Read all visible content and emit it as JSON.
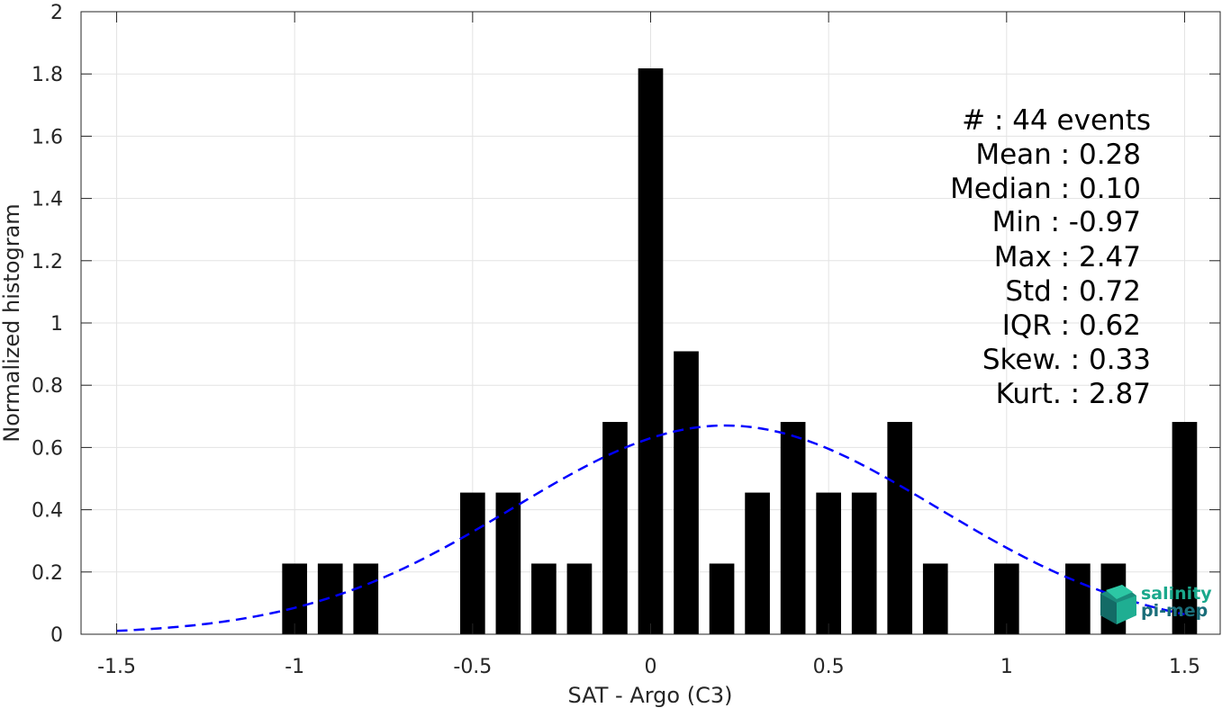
{
  "chart_data": {
    "type": "bar",
    "xlabel": "SAT - Argo (C3)",
    "ylabel": "Normalized histogram",
    "xlim": [
      -1.6,
      1.6
    ],
    "ylim": [
      0,
      2
    ],
    "xticks": [
      -1.5,
      -1,
      -0.5,
      0,
      0.5,
      1,
      1.5
    ],
    "xtick_labels": [
      "-1.5",
      "-1",
      "-0.5",
      "0",
      "0.5",
      "1",
      "1.5"
    ],
    "yticks": [
      0,
      0.2,
      0.4,
      0.6,
      0.8,
      1,
      1.2,
      1.4,
      1.6,
      1.8,
      2
    ],
    "ytick_labels": [
      "0",
      "0.2",
      "0.4",
      "0.6",
      "0.8",
      "1",
      "1.2",
      "1.4",
      "1.6",
      "1.8",
      "2"
    ],
    "grid": true,
    "bar_width": 0.07,
    "bar_color": "#000000",
    "bins": [
      {
        "x": -1.0,
        "value": 0.227
      },
      {
        "x": -0.9,
        "value": 0.227
      },
      {
        "x": -0.8,
        "value": 0.227
      },
      {
        "x": -0.5,
        "value": 0.455
      },
      {
        "x": -0.4,
        "value": 0.455
      },
      {
        "x": -0.3,
        "value": 0.227
      },
      {
        "x": -0.2,
        "value": 0.227
      },
      {
        "x": -0.1,
        "value": 0.682
      },
      {
        "x": 0.0,
        "value": 1.818
      },
      {
        "x": 0.1,
        "value": 0.909
      },
      {
        "x": 0.2,
        "value": 0.227
      },
      {
        "x": 0.3,
        "value": 0.455
      },
      {
        "x": 0.4,
        "value": 0.682
      },
      {
        "x": 0.5,
        "value": 0.455
      },
      {
        "x": 0.6,
        "value": 0.455
      },
      {
        "x": 0.7,
        "value": 0.682
      },
      {
        "x": 0.8,
        "value": 0.227
      },
      {
        "x": 1.0,
        "value": 0.227
      },
      {
        "x": 1.2,
        "value": 0.227
      },
      {
        "x": 1.3,
        "value": 0.227
      },
      {
        "x": 1.5,
        "value": 0.682
      }
    ],
    "fit_curve": {
      "style": "dashed",
      "color": "#0000ff",
      "mean": 0.21,
      "std": 0.595,
      "x_range": [
        -1.5,
        1.5
      ]
    }
  },
  "stats": {
    "events": "#  : 44 events",
    "mean": "Mean : 0.28",
    "median": "Median : 0.10",
    "min": "Min : -0.97",
    "max": "Max : 2.47",
    "std": "Std : 0.72",
    "iqr": "IQR : 0.62",
    "skew": "Skew. : 0.33",
    "kurt": "Kurt. : 2.87"
  },
  "logo": {
    "line1": "salinity",
    "line2": "pi-mep",
    "color1": "#1aa88c",
    "color2": "#1a6e7a"
  }
}
